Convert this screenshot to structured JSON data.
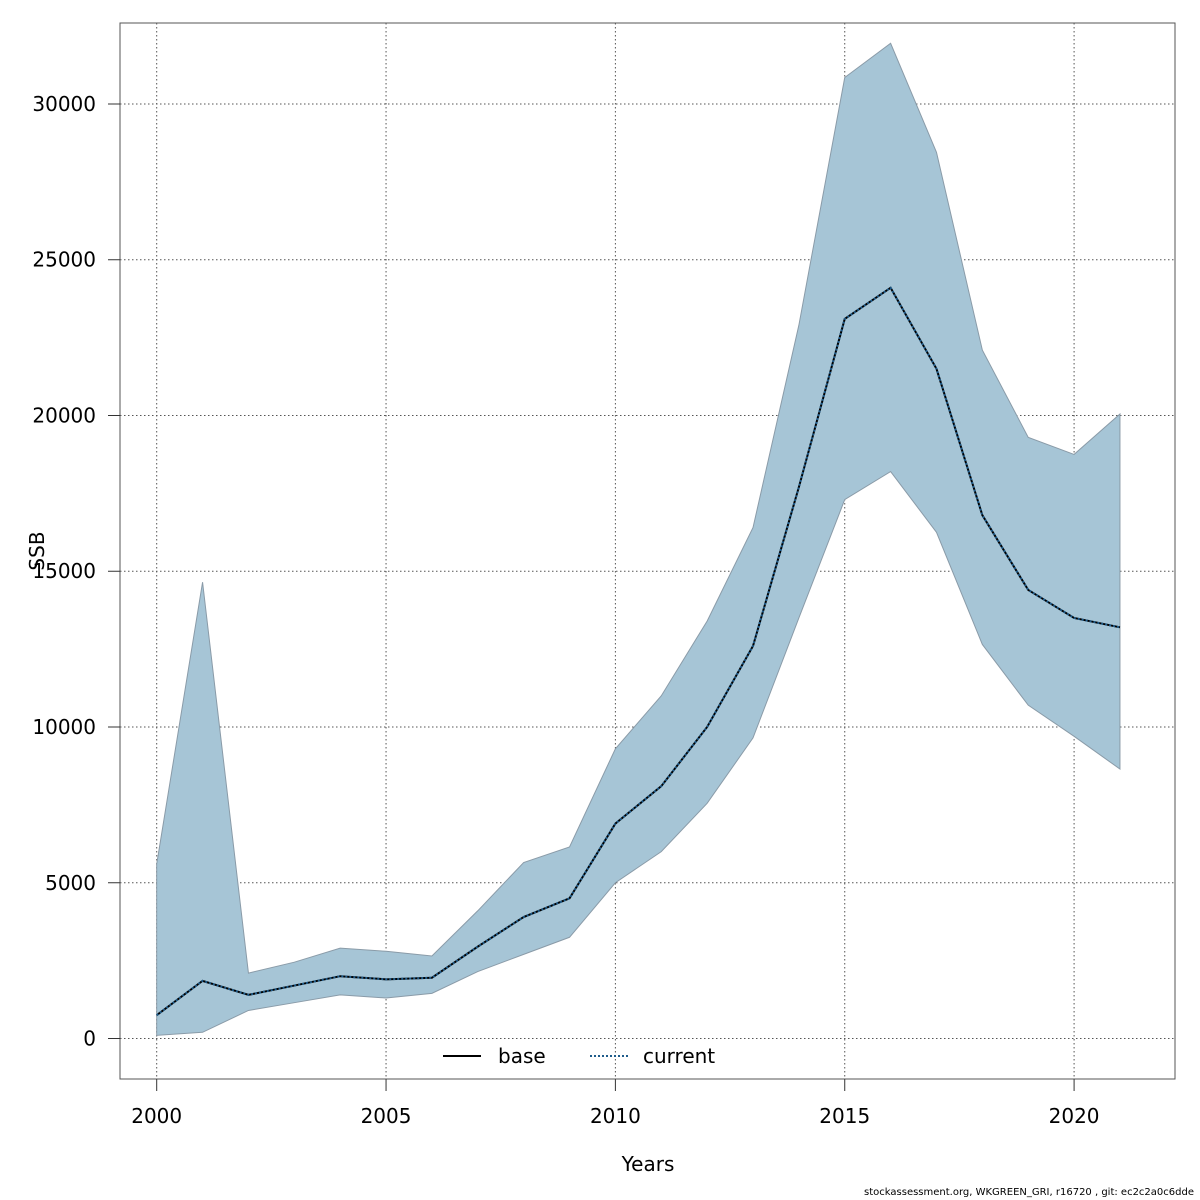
{
  "chart_data": {
    "type": "area",
    "xlabel": "Years",
    "ylabel": "SSB",
    "xlim": [
      1999.2,
      2022.2
    ],
    "ylim": [
      -1300,
      32600
    ],
    "x_ticks": [
      2000,
      2005,
      2010,
      2015,
      2020
    ],
    "x_tick_labels": [
      "2000",
      "2005",
      "2010",
      "2015",
      "2020"
    ],
    "y_ticks": [
      0,
      5000,
      10000,
      15000,
      20000,
      25000,
      30000
    ],
    "y_tick_labels": [
      "0",
      "5000",
      "10000",
      "15000",
      "20000",
      "25000",
      "30000"
    ],
    "grid": true,
    "legend_position": "bottom",
    "x": [
      2000,
      2001,
      2002,
      2003,
      2004,
      2005,
      2006,
      2007,
      2008,
      2009,
      2010,
      2011,
      2012,
      2013,
      2014,
      2015,
      2016,
      2017,
      2018,
      2019,
      2020,
      2021
    ],
    "band": {
      "color": "#a6c5d6",
      "stroke": "#8a9ba8",
      "upper": [
        5600,
        14650,
        2100,
        2450,
        2900,
        2800,
        2650,
        4100,
        5650,
        6150,
        9300,
        11000,
        13400,
        16400,
        22900,
        30850,
        31950,
        28450,
        22100,
        19300,
        18750,
        20050
      ],
      "lower": [
        100,
        200,
        900,
        1150,
        1400,
        1300,
        1450,
        2150,
        2700,
        3250,
        5000,
        6000,
        7550,
        9650,
        13500,
        17300,
        18200,
        16250,
        12650,
        10700,
        9700,
        8650
      ]
    },
    "series": [
      {
        "name": "base",
        "color": "#000000",
        "dash": "solid",
        "values": [
          750,
          1850,
          1400,
          1700,
          2000,
          1900,
          1950,
          2950,
          3900,
          4500,
          6900,
          8100,
          10000,
          12600,
          17700,
          23100,
          24100,
          21500,
          16800,
          14400,
          13500,
          13200
        ]
      },
      {
        "name": "current",
        "color": "#1f5c8b",
        "dash": "dotted",
        "values": [
          750,
          1850,
          1400,
          1700,
          2000,
          1900,
          1950,
          2950,
          3900,
          4500,
          6900,
          8100,
          10000,
          12600,
          17700,
          23100,
          24100,
          21500,
          16800,
          14400,
          13500,
          13200
        ]
      }
    ]
  },
  "footer": {
    "credit": "stockassessment.org, WKGREEN_GRI, r16720 , git: ec2c2a0c6dde"
  }
}
